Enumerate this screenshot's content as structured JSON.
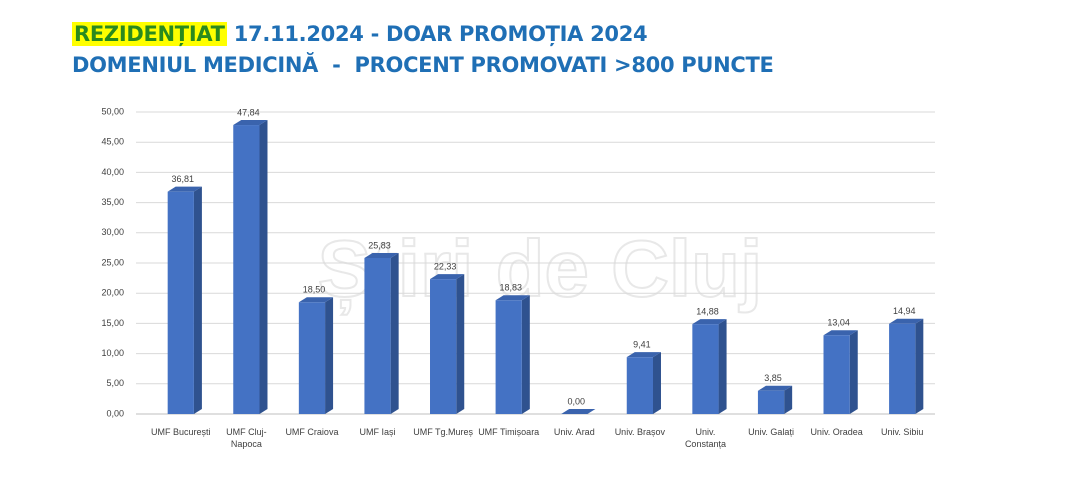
{
  "chart_data": {
    "type": "bar3d",
    "title_highlight": "REZIDENȚIAT",
    "title": "17.11.2024 - DOAR PROMOȚIA 2024",
    "subtitle": "DOMENIUL MEDICINĂ  -  PROCENT PROMOVATI >800 PUNCTE",
    "watermark": "Știri de Cluj",
    "categories": [
      "UMF București",
      "UMF Cluj-Napoca",
      "UMF Craiova",
      "UMF Iași",
      "UMF Tg.Mureș",
      "UMF Timișoara",
      "Univ. Arad",
      "Univ. Brașov",
      "Univ. Constanța",
      "Univ. Galați",
      "Univ. Oradea",
      "Univ. Sibiu"
    ],
    "values": [
      36.81,
      47.84,
      18.5,
      25.83,
      22.33,
      18.83,
      0,
      9.41,
      14.88,
      3.85,
      13.04,
      14.94
    ],
    "value_labels": [
      "36,81",
      "47,84",
      "18,50",
      "25,83",
      "22,33",
      "18,83",
      "0,00",
      "9,41",
      "14,88",
      "3,85",
      "13,04",
      "14,94"
    ],
    "color": "#4472c4",
    "ylim": [
      0,
      50
    ],
    "yticks": [
      {
        "value": 0,
        "label": "0,00"
      },
      {
        "value": 5,
        "label": "5,00"
      },
      {
        "value": 10,
        "label": "10,00"
      },
      {
        "value": 15,
        "label": "15,00"
      },
      {
        "value": 20,
        "label": "20,00"
      },
      {
        "value": 25,
        "label": "25,00"
      },
      {
        "value": 30,
        "label": "30,00"
      },
      {
        "value": 35,
        "label": "35,00"
      },
      {
        "value": 40,
        "label": "40,00"
      },
      {
        "value": 45,
        "label": "45,00"
      },
      {
        "value": 50,
        "label": "50,00"
      }
    ],
    "grid": true
  }
}
